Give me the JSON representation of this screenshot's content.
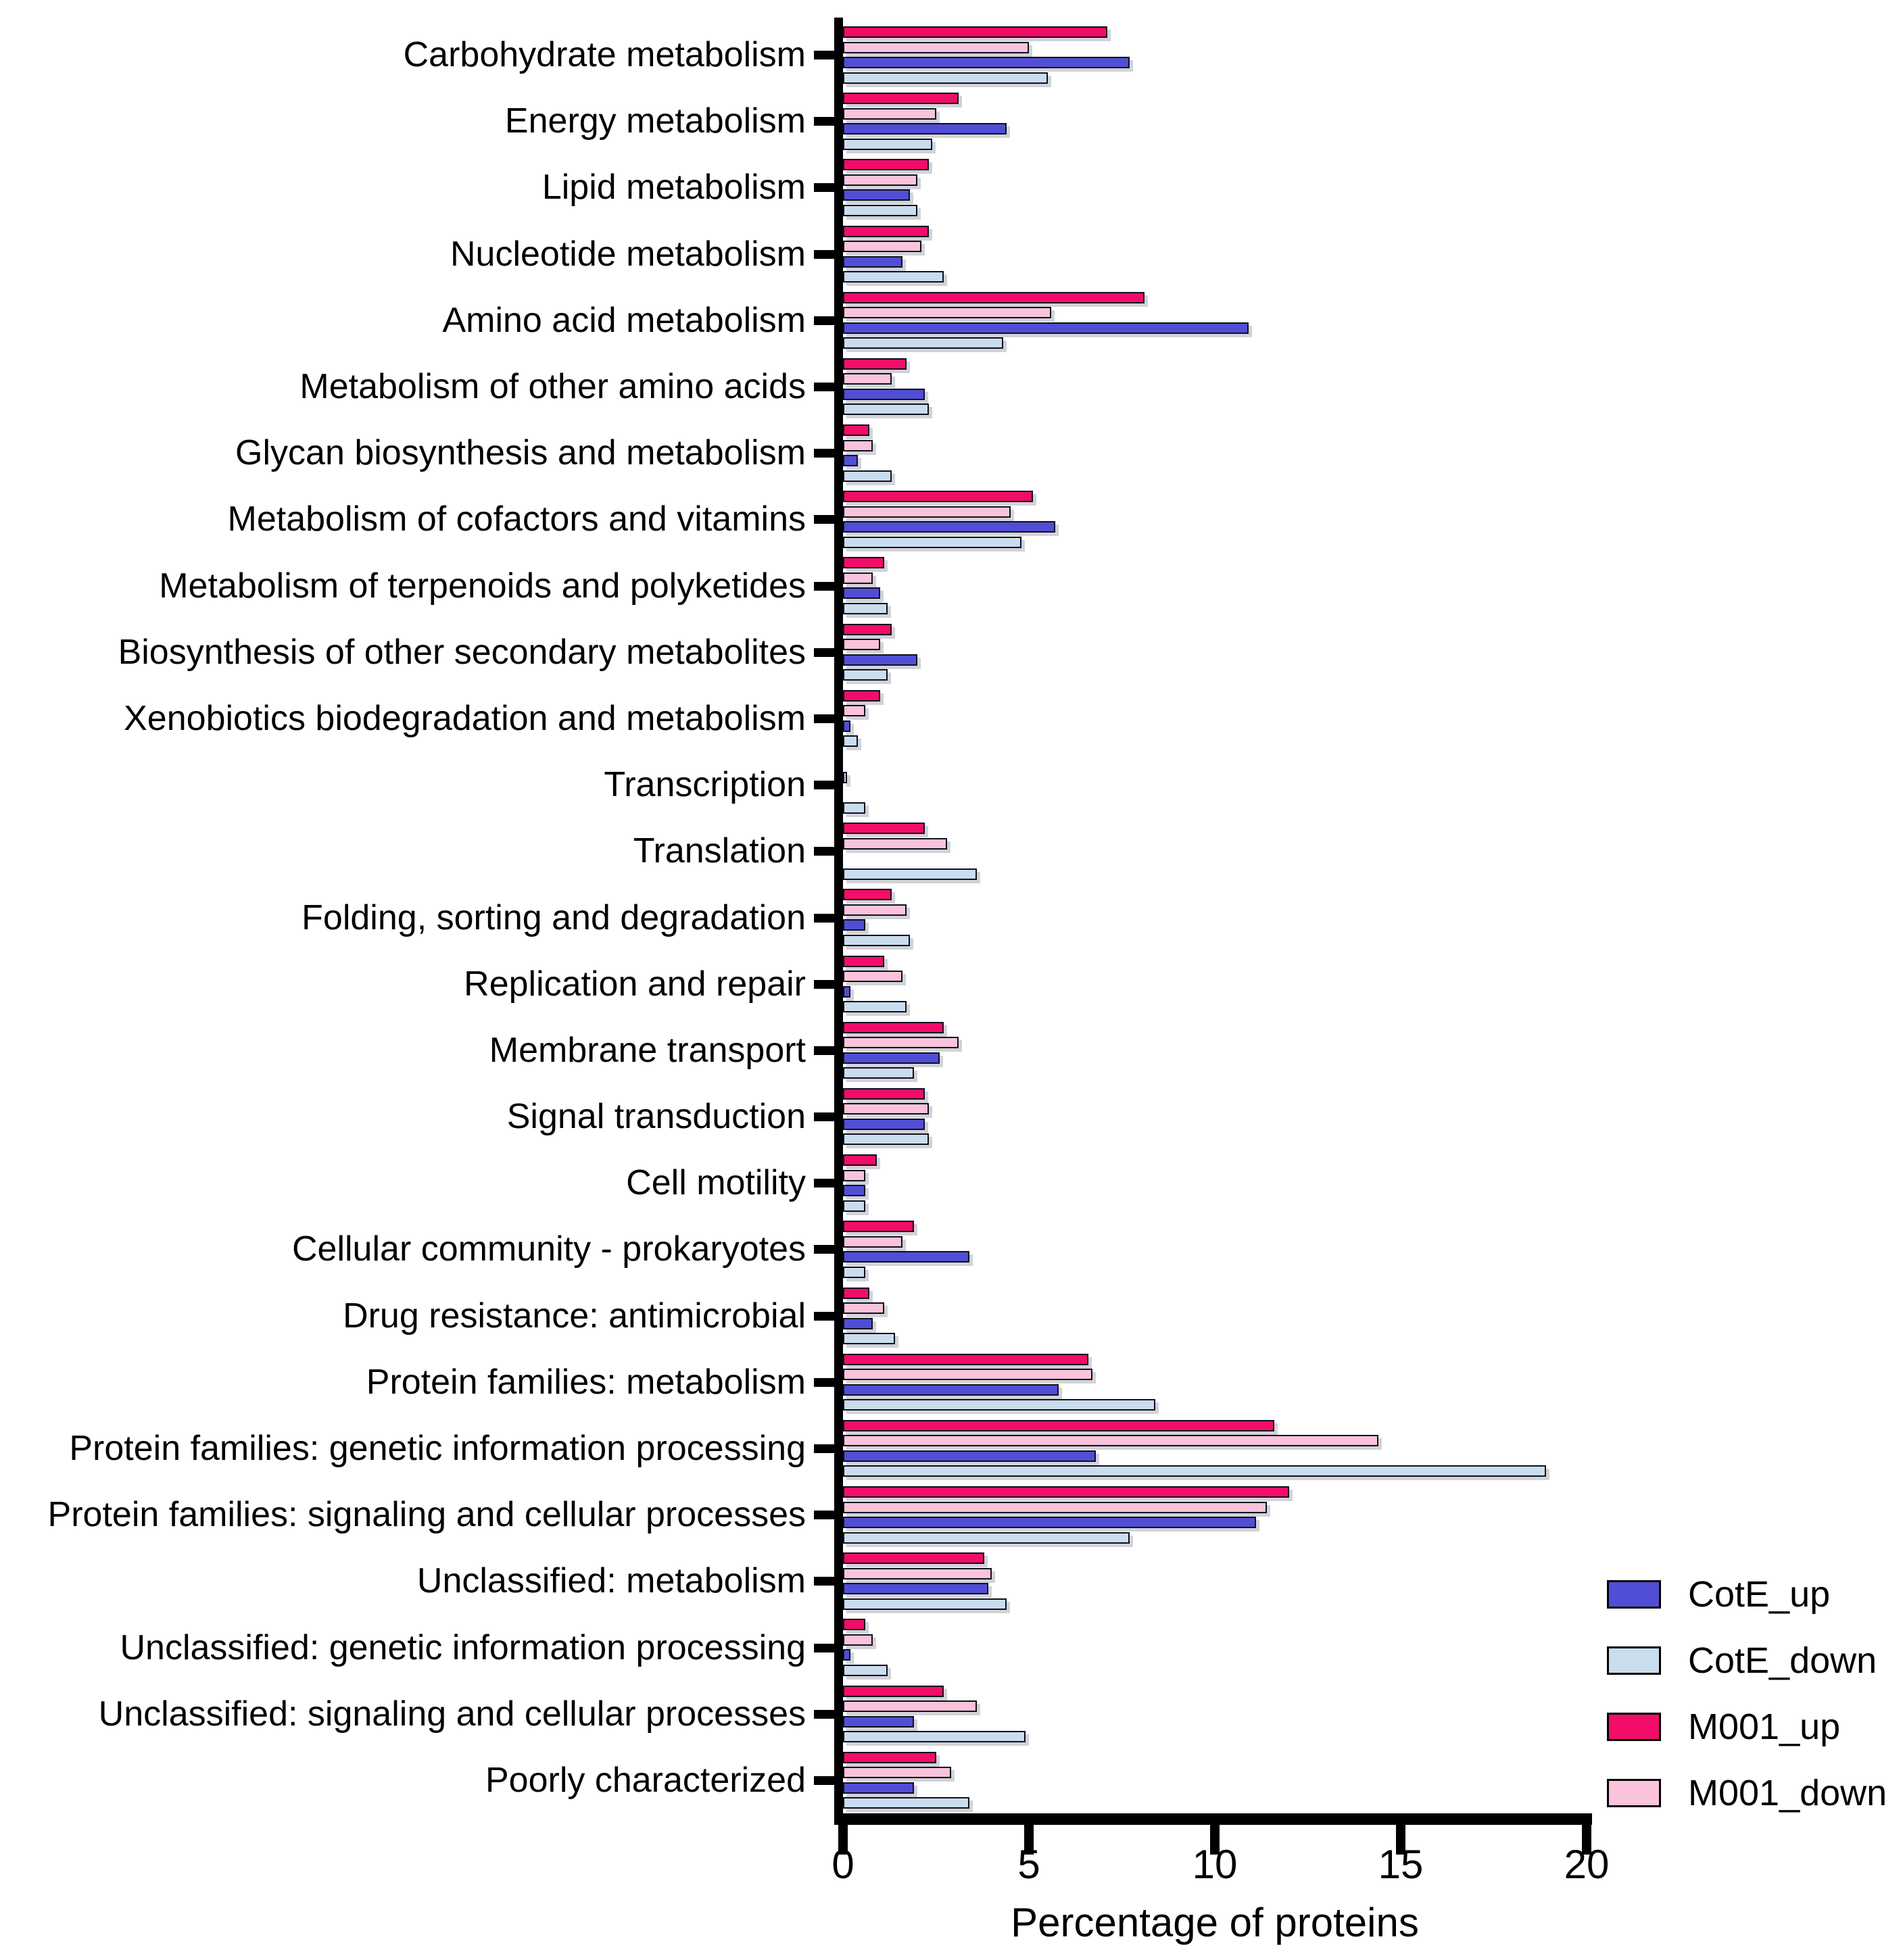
{
  "figure_title": "",
  "chart_data": {
    "type": "bar",
    "orientation": "horizontal",
    "title": "",
    "xlabel": "Percentage of proteins",
    "ylabel": "",
    "xlim": [
      0,
      20
    ],
    "xticks": [
      0,
      5,
      10,
      15,
      20
    ],
    "grid": false,
    "legend_position": "bottom-right",
    "bar_order_top_to_bottom": [
      "M001_up",
      "M001_down",
      "CotE_up",
      "CotE_down"
    ],
    "axis_color": "#000000",
    "bar_border_color": "#10101e",
    "categories": [
      "Carbohydrate metabolism",
      "Energy metabolism",
      "Lipid metabolism",
      "Nucleotide metabolism",
      "Amino acid metabolism",
      "Metabolism of other amino acids",
      "Glycan biosynthesis and metabolism",
      "Metabolism of cofactors and vitamins",
      "Metabolism of terpenoids and polyketides",
      "Biosynthesis of other secondary metabolites",
      "Xenobiotics biodegradation and metabolism",
      "Transcription",
      "Translation",
      "Folding, sorting and degradation",
      "Replication and repair",
      "Membrane transport",
      "Signal transduction",
      "Cell motility",
      "Cellular community - prokaryotes",
      "Drug resistance: antimicrobial",
      "Protein families: metabolism",
      "Protein families: genetic information processing",
      "Protein families: signaling and cellular processes",
      "Unclassified: metabolism",
      "Unclassified: genetic information processing",
      "Unclassified: signaling and cellular processes",
      "Poorly characterized"
    ],
    "series": [
      {
        "name": "CotE_up",
        "color": "#514ED6",
        "values": [
          7.7,
          4.4,
          1.8,
          1.6,
          10.9,
          2.2,
          0.4,
          5.7,
          1.0,
          2.0,
          0.2,
          0,
          0,
          0.6,
          0.2,
          2.6,
          2.2,
          0.6,
          3.4,
          0.8,
          5.8,
          6.8,
          11.1,
          3.9,
          0.2,
          1.9,
          1.9
        ]
      },
      {
        "name": "CotE_down",
        "color": "#C9DDEE",
        "values": [
          5.5,
          2.4,
          2.0,
          2.7,
          4.3,
          2.3,
          1.3,
          4.8,
          1.2,
          1.2,
          0.4,
          0.6,
          3.6,
          1.8,
          1.7,
          1.9,
          2.3,
          0.6,
          0.6,
          1.4,
          8.4,
          18.9,
          7.7,
          4.4,
          1.2,
          4.9,
          3.4
        ]
      },
      {
        "name": "M001_up",
        "color": "#F20D68",
        "values": [
          7.1,
          3.1,
          2.3,
          2.3,
          8.1,
          1.7,
          0.7,
          5.1,
          1.1,
          1.3,
          1.0,
          0,
          2.2,
          1.3,
          1.1,
          2.7,
          2.2,
          0.9,
          1.9,
          0.7,
          6.6,
          11.6,
          12.0,
          3.8,
          0.6,
          2.7,
          2.5
        ]
      },
      {
        "name": "M001_down",
        "color": "#FAC3DC",
        "values": [
          5.0,
          2.5,
          2.0,
          2.1,
          5.6,
          1.3,
          0.8,
          4.5,
          0.8,
          1.0,
          0.6,
          0.1,
          2.8,
          1.7,
          1.6,
          3.1,
          2.3,
          0.6,
          1.6,
          1.1,
          6.7,
          14.4,
          11.4,
          4.0,
          0.8,
          3.6,
          2.9
        ]
      }
    ]
  }
}
